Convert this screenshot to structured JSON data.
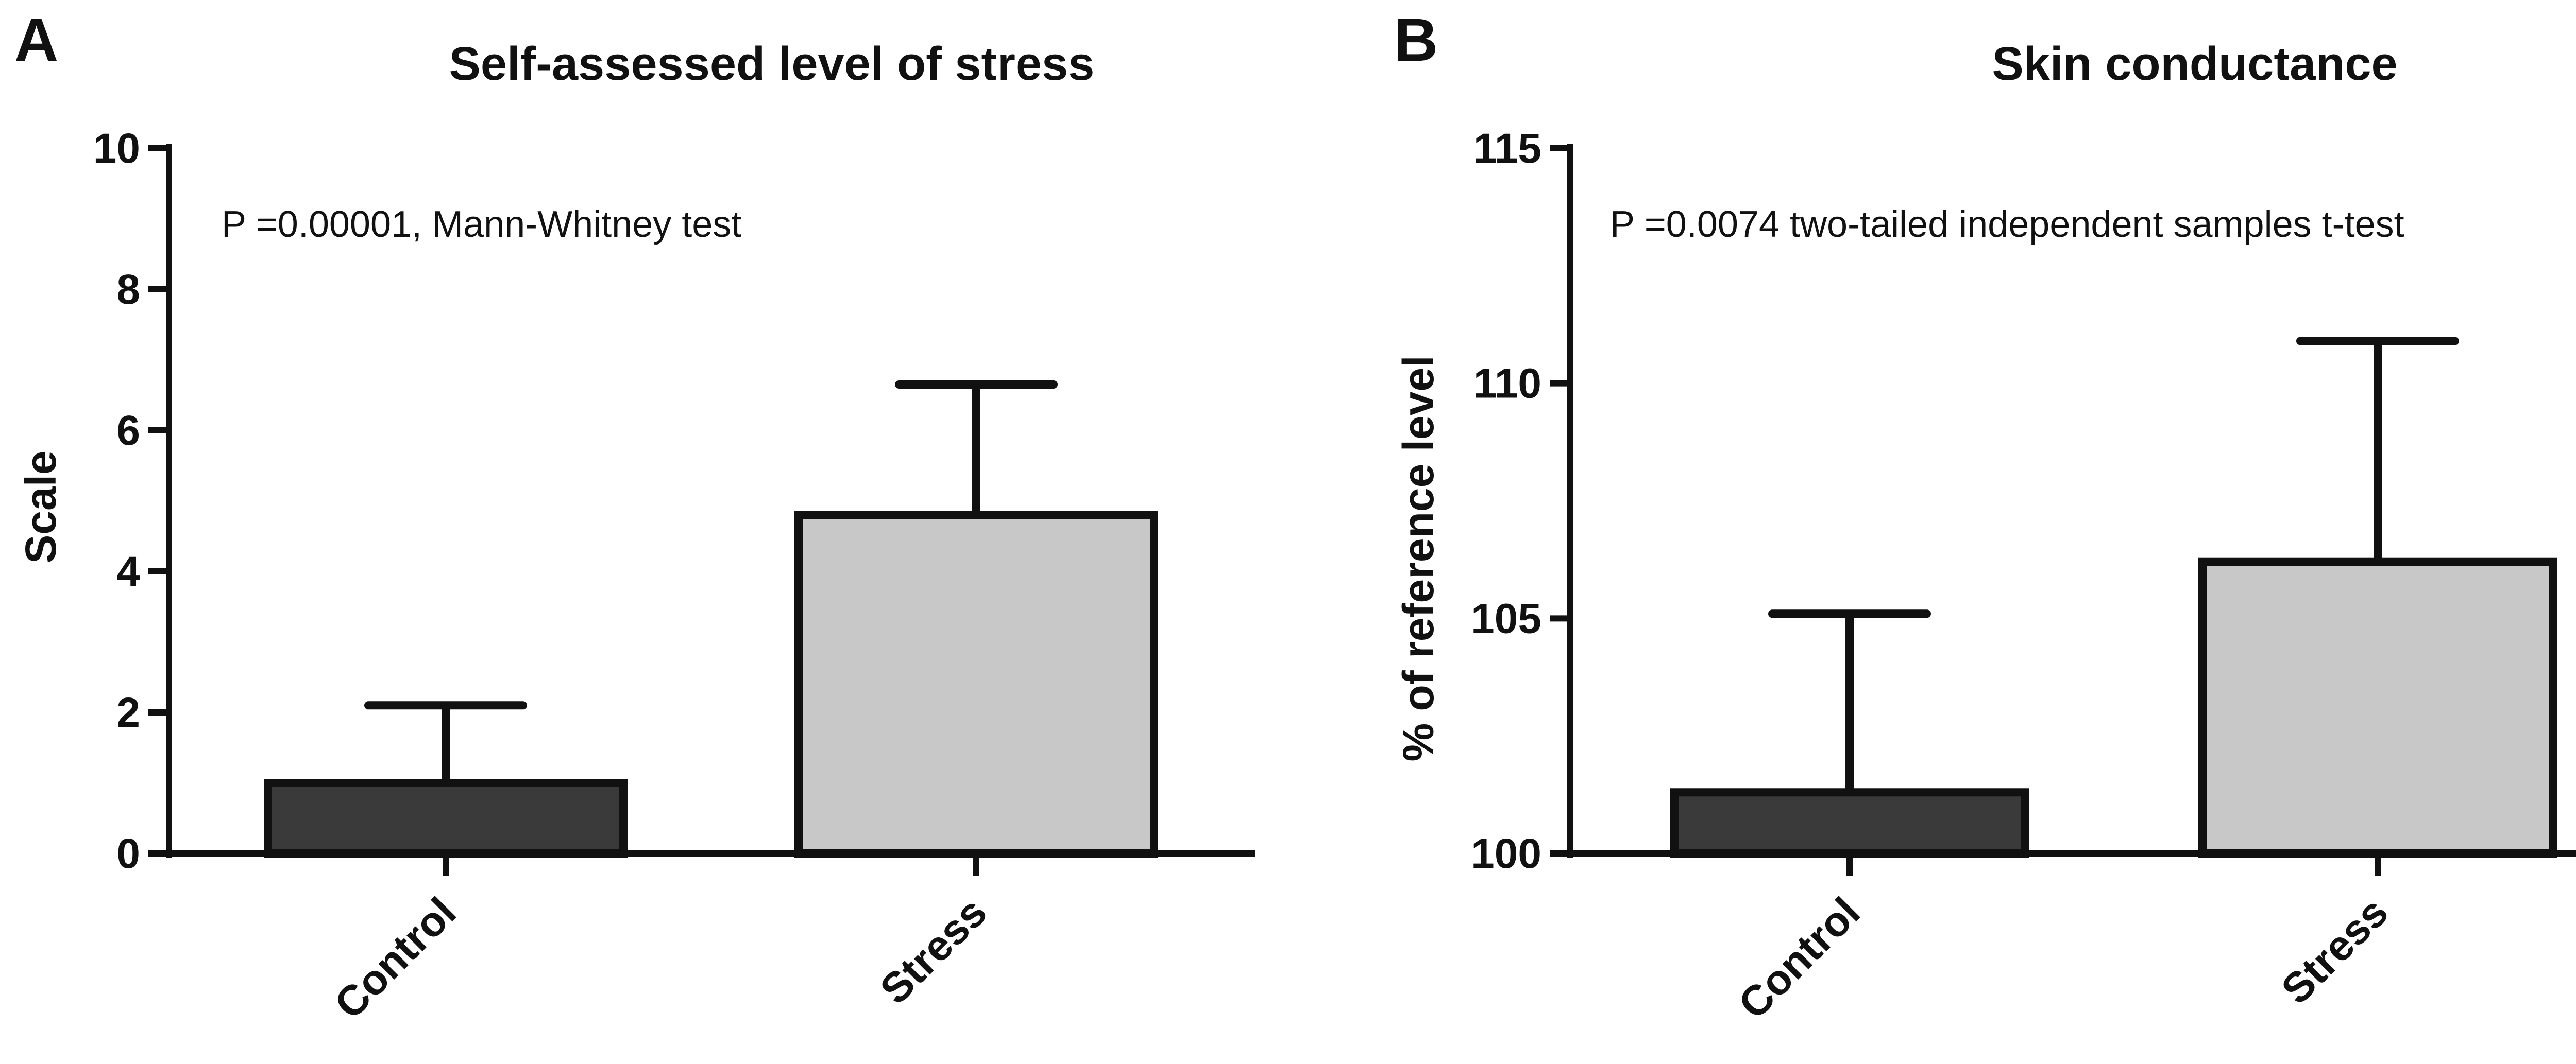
{
  "colors": {
    "control_bar": "#3a3a3a",
    "stress_bar": "#c8c8c8",
    "ink": "#111111"
  },
  "chart_data": [
    {
      "panel": "A",
      "type": "bar",
      "title": "Self-assessed level of stress",
      "xlabel": "",
      "ylabel": "Scale",
      "ylim": [
        0,
        10
      ],
      "yticks": [
        0,
        2,
        4,
        6,
        8,
        10
      ],
      "ytick_labels": [
        "0",
        "2",
        "4",
        "6",
        "8",
        "10"
      ],
      "categories": [
        "Control",
        "Stress"
      ],
      "values": [
        1.0,
        4.8
      ],
      "error_upper": [
        2.1,
        6.65
      ],
      "annotation": "P =0.00001, Mann-Whitney test",
      "grid": false,
      "legend": "none"
    },
    {
      "panel": "B",
      "type": "bar",
      "title": "Skin conductance",
      "xlabel": "",
      "ylabel": "% of reference level",
      "ylim": [
        100,
        115
      ],
      "yticks": [
        100,
        105,
        110,
        115
      ],
      "ytick_labels": [
        "100",
        "105",
        "110",
        "115"
      ],
      "categories": [
        "Control",
        "Stress"
      ],
      "values": [
        101.3,
        106.2
      ],
      "error_upper": [
        105.1,
        110.9
      ],
      "annotation": "P =0.0074 two-tailed independent samples t-test",
      "grid": false,
      "legend": "none"
    }
  ]
}
